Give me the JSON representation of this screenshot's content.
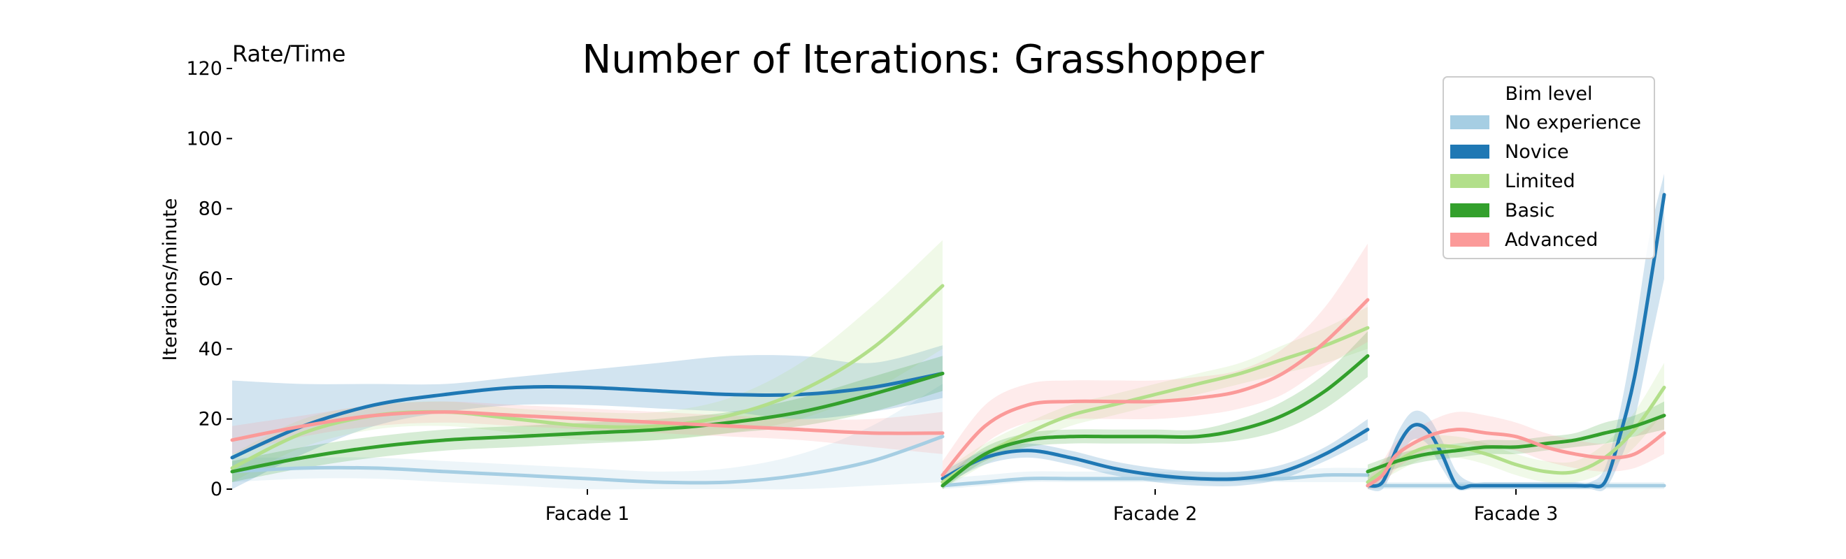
{
  "chart_data": {
    "type": "line",
    "title": "Number of Iterations: Grasshopper",
    "corner_label": "Rate/Time",
    "xlabel": "",
    "ylabel": "Iterations/minute",
    "ylim": [
      0,
      120
    ],
    "yticks": [
      0,
      20,
      40,
      60,
      80,
      100,
      120
    ],
    "grid": false,
    "legend": {
      "title": "Bim level",
      "placement": "top-right"
    },
    "colors": {
      "No experience": "#a6cee3",
      "Novice": "#1f78b4",
      "Limited": "#b2df8a",
      "Basic": "#33a02c",
      "Advanced": "#fb9a99"
    },
    "panels": [
      {
        "name": "Facade 1",
        "series": [
          {
            "name": "No experience",
            "x": [
              0,
              0.1,
              0.2,
              0.3,
              0.4,
              0.5,
              0.6,
              0.7,
              0.8,
              0.9,
              1.0
            ],
            "values": [
              5,
              6,
              6,
              5,
              4,
              3,
              2,
              2,
              4,
              8,
              15
            ],
            "lower": [
              2,
              3,
              3,
              2,
              1,
              0,
              0,
              0,
              0,
              1,
              2
            ],
            "upper": [
              9,
              9,
              9,
              8,
              7,
              6,
              5,
              6,
              10,
              18,
              30
            ]
          },
          {
            "name": "Novice",
            "x": [
              0,
              0.1,
              0.2,
              0.3,
              0.4,
              0.5,
              0.6,
              0.7,
              0.8,
              0.9,
              1.0
            ],
            "values": [
              9,
              18,
              24,
              27,
              29,
              29,
              28,
              27,
              27,
              29,
              33
            ],
            "lower": [
              0,
              10,
              18,
              22,
              24,
              24,
              23,
              22,
              20,
              22,
              26
            ],
            "upper": [
              31,
              30,
              30,
              30,
              32,
              34,
              36,
              38,
              38,
              36,
              41
            ]
          },
          {
            "name": "Limited",
            "x": [
              0,
              0.1,
              0.2,
              0.3,
              0.4,
              0.5,
              0.6,
              0.7,
              0.8,
              0.9,
              1.0
            ],
            "values": [
              6,
              16,
              21,
              22,
              20,
              18,
              18,
              21,
              28,
              40,
              58
            ],
            "lower": [
              2,
              12,
              17,
              18,
              16,
              14,
              14,
              16,
              20,
              28,
              40
            ],
            "upper": [
              10,
              20,
              24,
              25,
              23,
              22,
              22,
              26,
              36,
              52,
              71
            ]
          },
          {
            "name": "Basic",
            "x": [
              0,
              0.1,
              0.2,
              0.3,
              0.4,
              0.5,
              0.6,
              0.7,
              0.8,
              0.9,
              1.0
            ],
            "values": [
              5,
              9,
              12,
              14,
              15,
              16,
              17,
              19,
              22,
              27,
              33
            ],
            "lower": [
              2,
              6,
              9,
              11,
              12,
              13,
              14,
              16,
              18,
              22,
              28
            ],
            "upper": [
              8,
              12,
              15,
              17,
              18,
              19,
              20,
              22,
              26,
              32,
              38
            ]
          },
          {
            "name": "Advanced",
            "x": [
              0,
              0.1,
              0.2,
              0.3,
              0.4,
              0.5,
              0.6,
              0.7,
              0.8,
              0.9,
              1.0
            ],
            "values": [
              14,
              18,
              21,
              22,
              21,
              20,
              19,
              18,
              17,
              16,
              16
            ],
            "lower": [
              10,
              15,
              18,
              19,
              18,
              17,
              16,
              15,
              14,
              12,
              10
            ],
            "upper": [
              18,
              21,
              24,
              25,
              24,
              23,
              22,
              21,
              20,
              20,
              22
            ]
          }
        ]
      },
      {
        "name": "Facade 2",
        "series": [
          {
            "name": "No experience",
            "x": [
              0,
              0.1,
              0.2,
              0.3,
              0.4,
              0.5,
              0.6,
              0.7,
              0.8,
              0.9,
              1.0
            ],
            "values": [
              1,
              2,
              3,
              3,
              3,
              3,
              3,
              3,
              3,
              4,
              4
            ],
            "lower": [
              0,
              1,
              2,
              2,
              2,
              2,
              2,
              2,
              2,
              2,
              2
            ],
            "upper": [
              3,
              4,
              5,
              5,
              5,
              5,
              5,
              5,
              5,
              6,
              6
            ]
          },
          {
            "name": "Novice",
            "x": [
              0,
              0.1,
              0.2,
              0.3,
              0.4,
              0.5,
              0.6,
              0.7,
              0.8,
              0.9,
              1.0
            ],
            "values": [
              3,
              9,
              11,
              9,
              6,
              4,
              3,
              3,
              5,
              10,
              17
            ],
            "lower": [
              1,
              7,
              9,
              7,
              4,
              2,
              1,
              1,
              3,
              8,
              14
            ],
            "upper": [
              5,
              11,
              13,
              11,
              8,
              6,
              5,
              5,
              7,
              12,
              20
            ]
          },
          {
            "name": "Limited",
            "x": [
              0,
              0.1,
              0.2,
              0.3,
              0.4,
              0.5,
              0.6,
              0.7,
              0.8,
              0.9,
              1.0
            ],
            "values": [
              2,
              10,
              16,
              21,
              24,
              27,
              30,
              33,
              37,
              41,
              46
            ],
            "lower": [
              0,
              7,
              13,
              18,
              21,
              24,
              27,
              30,
              33,
              36,
              40
            ],
            "upper": [
              5,
              13,
              19,
              24,
              27,
              30,
              33,
              36,
              41,
              46,
              52
            ]
          },
          {
            "name": "Basic",
            "x": [
              0,
              0.1,
              0.2,
              0.3,
              0.4,
              0.5,
              0.6,
              0.7,
              0.8,
              0.9,
              1.0
            ],
            "values": [
              1,
              10,
              14,
              15,
              15,
              15,
              15,
              17,
              21,
              28,
              38
            ],
            "lower": [
              0,
              8,
              12,
              13,
              13,
              13,
              13,
              14,
              17,
              23,
              32
            ],
            "upper": [
              3,
              12,
              16,
              17,
              17,
              17,
              17,
              20,
              25,
              33,
              45
            ]
          },
          {
            "name": "Advanced",
            "x": [
              0,
              0.1,
              0.2,
              0.3,
              0.4,
              0.5,
              0.6,
              0.7,
              0.8,
              0.9,
              1.0
            ],
            "values": [
              4,
              18,
              24,
              25,
              25,
              25,
              26,
              28,
              33,
              42,
              54
            ],
            "lower": [
              0,
              13,
              19,
              20,
              20,
              20,
              21,
              23,
              27,
              35,
              42
            ],
            "upper": [
              8,
              24,
              30,
              31,
              31,
              31,
              32,
              34,
              40,
              52,
              70
            ]
          }
        ]
      },
      {
        "name": "Facade 3",
        "series": [
          {
            "name": "No experience",
            "x": [
              0,
              0.1,
              0.2,
              0.3,
              0.4,
              0.5,
              0.6,
              0.7,
              0.8,
              0.9,
              1.0
            ],
            "values": [
              1,
              1,
              1,
              1,
              1,
              1,
              1,
              1,
              1,
              1,
              1
            ],
            "lower": [
              0,
              0,
              0,
              0,
              0,
              0,
              0,
              0,
              0,
              0,
              0
            ],
            "upper": [
              2,
              2,
              2,
              2,
              2,
              2,
              2,
              2,
              2,
              2,
              2
            ]
          },
          {
            "name": "Novice",
            "x": [
              0,
              0.05,
              0.1,
              0.15,
              0.2,
              0.25,
              0.3,
              0.35,
              0.4,
              0.5,
              0.6,
              0.65,
              0.7,
              0.75,
              0.8,
              0.85,
              0.9,
              0.95,
              1.0
            ],
            "values": [
              1,
              2,
              12,
              18,
              17,
              10,
              1,
              1,
              1,
              1,
              1,
              1,
              1,
              1,
              2,
              15,
              32,
              57,
              84
            ],
            "lower": [
              0,
              0,
              8,
              14,
              13,
              6,
              0,
              0,
              0,
              0,
              0,
              0,
              0,
              0,
              0,
              8,
              20,
              40,
              60
            ],
            "upper": [
              3,
              6,
              16,
              22,
              21,
              14,
              5,
              2,
              2,
              2,
              2,
              2,
              2,
              2,
              6,
              22,
              45,
              72,
              90
            ]
          },
          {
            "name": "Limited",
            "x": [
              0,
              0.1,
              0.2,
              0.3,
              0.4,
              0.5,
              0.6,
              0.7,
              0.8,
              0.9,
              1.0
            ],
            "values": [
              2,
              8,
              12,
              12,
              10,
              7,
              5,
              5,
              9,
              17,
              29
            ],
            "lower": [
              0,
              5,
              9,
              9,
              7,
              4,
              2,
              2,
              5,
              12,
              22
            ],
            "upper": [
              4,
              11,
              15,
              15,
              13,
              10,
              8,
              8,
              13,
              22,
              36
            ]
          },
          {
            "name": "Basic",
            "x": [
              0,
              0.1,
              0.2,
              0.3,
              0.4,
              0.5,
              0.6,
              0.7,
              0.8,
              0.9,
              1.0
            ],
            "values": [
              5,
              8,
              10,
              11,
              12,
              12,
              13,
              14,
              16,
              18,
              21
            ],
            "lower": [
              3,
              6,
              8,
              9,
              10,
              10,
              11,
              12,
              13,
              15,
              17
            ],
            "upper": [
              7,
              10,
              12,
              13,
              14,
              14,
              15,
              16,
              19,
              21,
              25
            ]
          },
          {
            "name": "Advanced",
            "x": [
              0,
              0.05,
              0.1,
              0.2,
              0.3,
              0.4,
              0.5,
              0.6,
              0.7,
              0.8,
              0.9,
              1.0
            ],
            "values": [
              1,
              4,
              10,
              15,
              17,
              16,
              15,
              12,
              10,
              9,
              10,
              16
            ],
            "lower": [
              0,
              1,
              6,
              11,
              13,
              12,
              11,
              8,
              6,
              5,
              6,
              10
            ],
            "upper": [
              3,
              8,
              14,
              19,
              22,
              21,
              19,
              16,
              14,
              13,
              15,
              22
            ]
          }
        ]
      }
    ]
  }
}
